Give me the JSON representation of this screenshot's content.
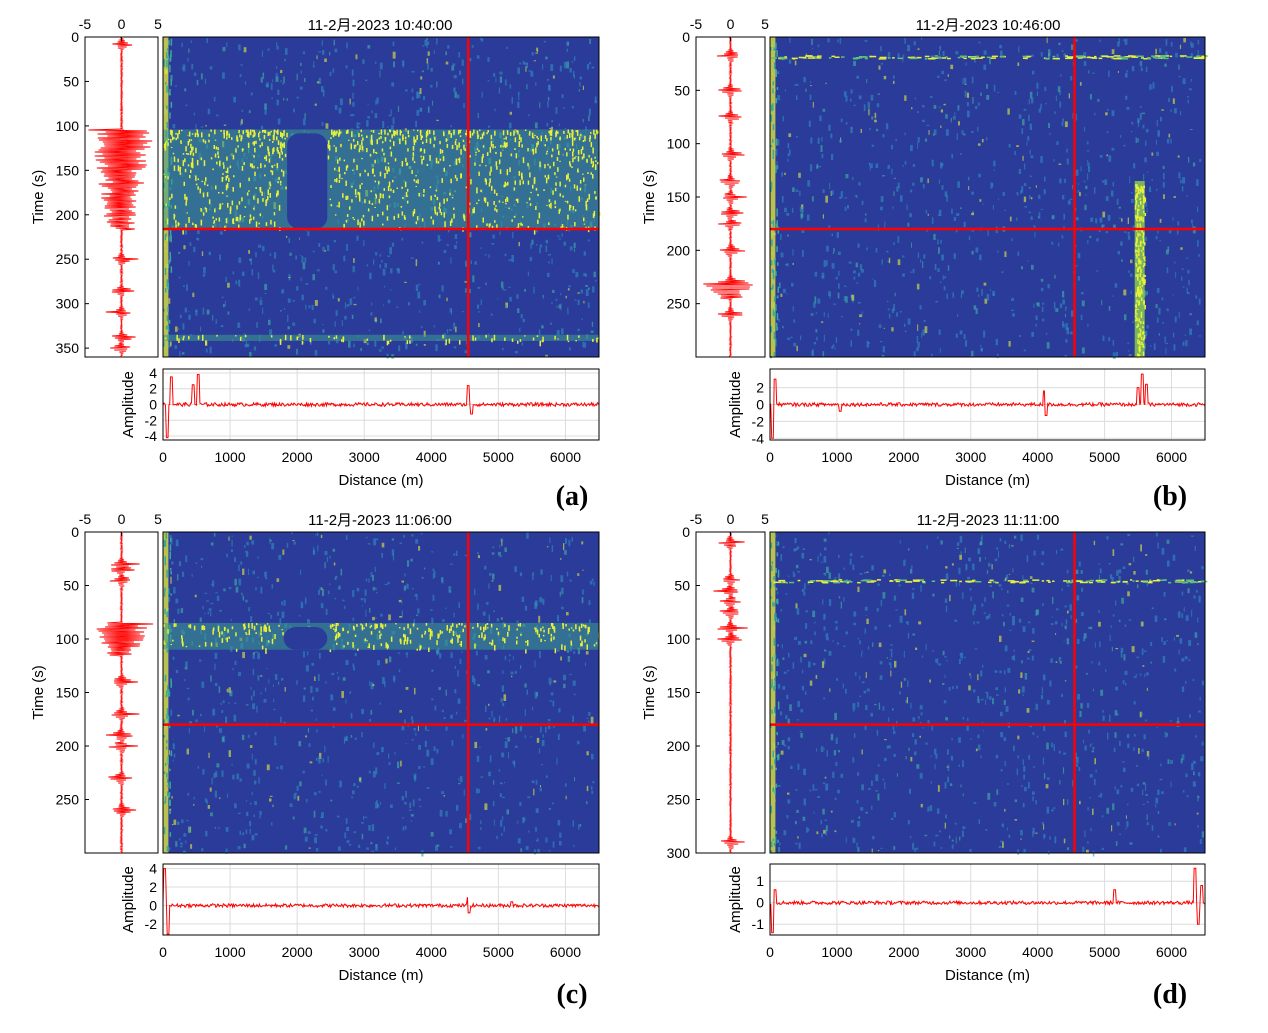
{
  "colors": {
    "trace": "#ff0000",
    "marker": "#ff0000",
    "background": "#2b3b9a",
    "hot": "#e8f03a",
    "mid": "#2f8fbf",
    "grid": "#dcdcdc"
  },
  "chart_data": [
    {
      "type": "heatmap",
      "panel_label": "(a)",
      "title": "11-2月-2023 10:40:00",
      "heatmap": {
        "xlabel": "",
        "ylabel": "Time (s)",
        "xlim": [
          0,
          6500
        ],
        "ylim": [
          0,
          360
        ],
        "yticks": [
          0,
          50,
          100,
          150,
          200,
          250,
          300,
          350
        ],
        "marker_distance_m": 4550,
        "marker_time_s": 216,
        "energetic_bands_s": [
          [
            104,
            216
          ],
          [
            335,
            342
          ]
        ],
        "quiet_gap_m": [
          1850,
          2450
        ]
      },
      "time_trace": {
        "xlabel": "",
        "xlim": [
          -5,
          5
        ],
        "xticks": [
          -5,
          0,
          5
        ],
        "events_s": [
          8,
          250,
          285,
          310,
          338,
          350
        ],
        "burst_s": [
          104,
          216
        ]
      },
      "distance_trace": {
        "xlabel": "Distance (m)",
        "ylabel": "Amplitude",
        "xlim": [
          0,
          6500
        ],
        "xticks": [
          0,
          1000,
          2000,
          3000,
          4000,
          5000,
          6000
        ],
        "ylim": [
          -4.5,
          4.5
        ],
        "yticks": [
          -4,
          -2,
          0,
          2,
          4
        ],
        "spikes": [
          [
            60,
            -4.2
          ],
          [
            120,
            3.5
          ],
          [
            450,
            2.5
          ],
          [
            520,
            3.8
          ],
          [
            4550,
            2.4
          ],
          [
            4600,
            -1.2
          ]
        ]
      }
    },
    {
      "type": "heatmap",
      "panel_label": "(b)",
      "title": "11-2月-2023 10:46:00",
      "heatmap": {
        "xlabel": "",
        "ylabel": "Time (s)",
        "xlim": [
          0,
          6500
        ],
        "ylim": [
          0,
          300
        ],
        "yticks": [
          0,
          50,
          100,
          150,
          200,
          250
        ],
        "marker_distance_m": 4550,
        "marker_time_s": 180,
        "vertical_band_m": [
          5450,
          5600
        ],
        "vertical_band_s": [
          135,
          300
        ],
        "horizontal_band_s": [
          17,
          20
        ]
      },
      "time_trace": {
        "xlabel": "",
        "xlim": [
          -5,
          5
        ],
        "xticks": [
          -5,
          0,
          5
        ],
        "events_s": [
          17,
          50,
          75,
          110,
          135,
          150,
          165,
          175,
          200,
          230,
          240,
          260
        ],
        "burst_s": [
          228,
          245
        ]
      },
      "distance_trace": {
        "xlabel": "Distance (m)",
        "ylabel": "Amplitude",
        "xlim": [
          0,
          6500
        ],
        "xticks": [
          0,
          1000,
          2000,
          3000,
          4000,
          5000,
          6000
        ],
        "ylim": [
          -4.2,
          4.2
        ],
        "yticks": [
          -4,
          -2,
          0,
          2
        ],
        "spikes": [
          [
            40,
            -4.0
          ],
          [
            80,
            3.0
          ],
          [
            1050,
            -0.8
          ],
          [
            4100,
            1.6
          ],
          [
            4120,
            -1.3
          ],
          [
            5500,
            2.0
          ],
          [
            5560,
            3.6
          ],
          [
            5620,
            2.4
          ]
        ]
      }
    },
    {
      "type": "heatmap",
      "panel_label": "(c)",
      "title": "11-2月-2023 11:06:00",
      "heatmap": {
        "xlabel": "",
        "ylabel": "Time (s)",
        "xlim": [
          0,
          6500
        ],
        "ylim": [
          0,
          300
        ],
        "yticks": [
          0,
          50,
          100,
          150,
          200,
          250
        ],
        "marker_distance_m": 4550,
        "marker_time_s": 180,
        "energetic_bands_s": [
          [
            85,
            110
          ]
        ],
        "quiet_gap_m": [
          1800,
          2450
        ]
      },
      "time_trace": {
        "xlabel": "",
        "xlim": [
          -5,
          5
        ],
        "xticks": [
          -5,
          0,
          5
        ],
        "events_s": [
          30,
          35,
          45,
          140,
          170,
          190,
          200,
          230,
          260
        ],
        "burst_s": [
          85,
          115
        ]
      },
      "distance_trace": {
        "xlabel": "Distance (m)",
        "ylabel": "Amplitude",
        "xlim": [
          0,
          6500
        ],
        "xticks": [
          0,
          1000,
          2000,
          3000,
          4000,
          5000,
          6000
        ],
        "ylim": [
          -3.2,
          4.5
        ],
        "yticks": [
          -2,
          0,
          2,
          4
        ],
        "spikes": [
          [
            30,
            4.0
          ],
          [
            70,
            -3.1
          ],
          [
            4550,
            0.9
          ],
          [
            4560,
            -0.8
          ],
          [
            5200,
            0.4
          ]
        ]
      }
    },
    {
      "type": "heatmap",
      "panel_label": "(d)",
      "title": "11-2月-2023 11:11:00",
      "heatmap": {
        "xlabel": "",
        "ylabel": "Time (s)",
        "xlim": [
          0,
          6500
        ],
        "ylim": [
          0,
          300
        ],
        "yticks": [
          0,
          50,
          100,
          150,
          200,
          250,
          300
        ],
        "marker_distance_m": 4550,
        "marker_time_s": 180,
        "horizontal_band_s": [
          44,
          46
        ]
      },
      "time_trace": {
        "xlabel": "",
        "xlim": [
          -5,
          5
        ],
        "xticks": [
          -5,
          0,
          5
        ],
        "events_s": [
          10,
          45,
          55,
          65,
          75,
          90,
          100,
          290
        ],
        "burst_s": []
      },
      "distance_trace": {
        "xlabel": "Distance (m)",
        "ylabel": "Amplitude",
        "xlim": [
          0,
          6500
        ],
        "xticks": [
          0,
          1000,
          2000,
          3000,
          4000,
          5000,
          6000
        ],
        "ylim": [
          -1.5,
          1.8
        ],
        "yticks": [
          -1,
          0,
          1
        ],
        "spikes": [
          [
            40,
            -1.4
          ],
          [
            70,
            0.6
          ],
          [
            5150,
            0.6
          ],
          [
            6350,
            1.6
          ],
          [
            6400,
            -1.0
          ],
          [
            6450,
            0.8
          ]
        ]
      }
    }
  ]
}
